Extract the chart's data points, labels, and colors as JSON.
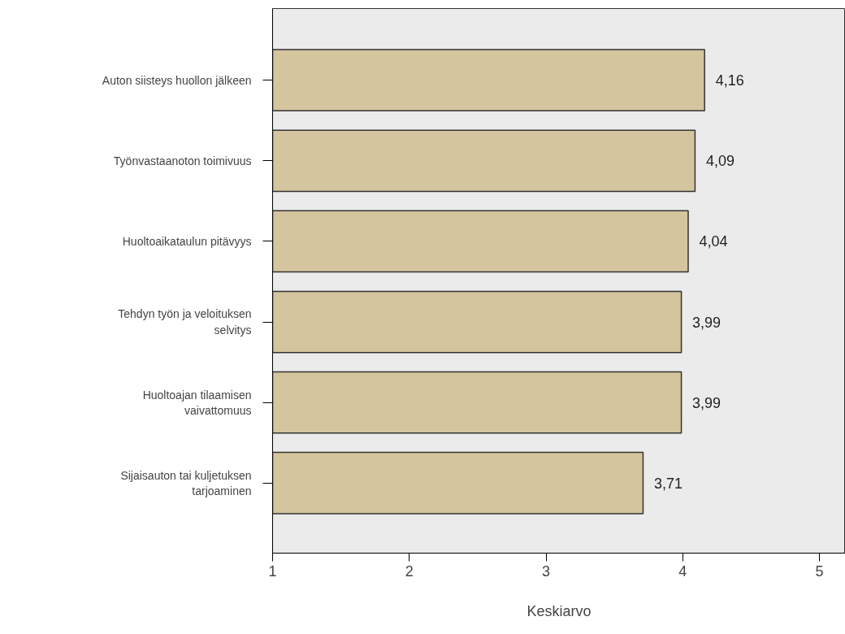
{
  "chart_data": {
    "type": "bar",
    "orientation": "horizontal",
    "xlabel": "Keskiarvo",
    "categories": [
      "Auton siisteys huollon jälkeen",
      "Työnvastaanoton toimivuus",
      "Huoltoaikataulun pitävyys",
      "Tehdyn työn ja veloituksen selvitys",
      "Huoltoajan tilaamisen vaivattomuus",
      "Sijaisauton tai kuljetuksen tarjoaminen"
    ],
    "values": [
      4.16,
      4.09,
      4.04,
      3.99,
      3.99,
      3.71
    ],
    "value_labels": [
      "4,16",
      "4,09",
      "4,04",
      "3,99",
      "3,99",
      "3,71"
    ],
    "color": "#d5c59f",
    "xlim": [
      1,
      5.19
    ],
    "xticks": [
      1,
      2,
      3,
      4,
      5
    ],
    "grid": false
  }
}
